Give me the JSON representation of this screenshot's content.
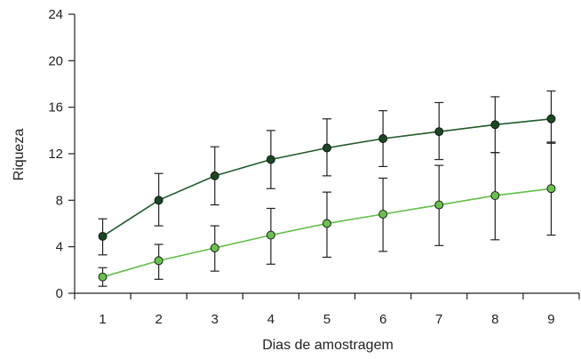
{
  "chart_data": {
    "type": "line",
    "xlabel": "Dias de amostragem",
    "ylabel": "Riqueza",
    "xlim": [
      0.5,
      9.5
    ],
    "ylim": [
      0,
      24
    ],
    "x_ticks": [
      1,
      2,
      3,
      4,
      5,
      6,
      7,
      8,
      9
    ],
    "y_ticks": [
      0,
      4,
      8,
      12,
      16,
      20,
      24
    ],
    "grid": false,
    "legend": "none",
    "series": [
      {
        "color": "#1f5a2a",
        "marker_fill": "#1a4724",
        "x": [
          1,
          2,
          3,
          4,
          5,
          6,
          7,
          8,
          9
        ],
        "values": [
          4.9,
          8.0,
          10.1,
          11.5,
          12.5,
          13.3,
          13.9,
          14.5,
          15.0
        ],
        "err_low": [
          3.3,
          5.8,
          7.6,
          9.0,
          10.1,
          10.9,
          11.5,
          12.1,
          12.9
        ],
        "err_high": [
          6.4,
          10.3,
          12.6,
          14.0,
          15.0,
          15.7,
          16.4,
          16.9,
          17.4
        ]
      },
      {
        "color": "#5fbf45",
        "marker_fill": "#6cc04f",
        "x": [
          1,
          2,
          3,
          4,
          5,
          6,
          7,
          8,
          9
        ],
        "values": [
          1.4,
          2.8,
          3.9,
          5.0,
          6.0,
          6.8,
          7.6,
          8.4,
          9.0
        ],
        "err_low": [
          0.6,
          1.2,
          1.9,
          2.5,
          3.1,
          3.6,
          4.1,
          4.6,
          5.0
        ],
        "err_high": [
          2.2,
          4.2,
          5.8,
          7.3,
          8.7,
          9.9,
          11.0,
          12.1,
          13.0
        ]
      }
    ]
  }
}
